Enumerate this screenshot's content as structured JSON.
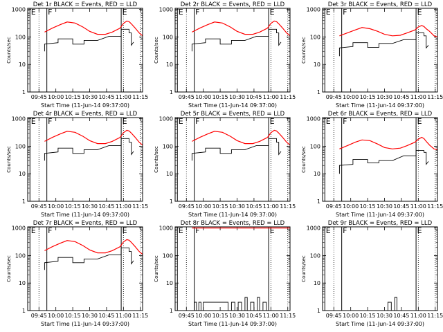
{
  "figure": {
    "xlabel": "Start Time (11-Jun-14 09:37:00)",
    "ylabel": "Counts/sec",
    "x_tick_labels": [
      "09:45",
      "10:00",
      "10:15",
      "10:30",
      "10:45",
      "11:00",
      "11:15"
    ],
    "y_tick_labels": [
      "1",
      "10",
      "100",
      "1000"
    ],
    "colors": {
      "events": "#000000",
      "lld": "#ff0000",
      "background": "#ffffff"
    }
  },
  "chart_data": [
    {
      "type": "line",
      "title": "Det 1r BLACK = Events, RED = LLD",
      "xlabel": "Start Time (11-Jun-14 09:37:00)",
      "ylabel": "Counts/sec",
      "x_unit": "minutes after 09:37",
      "xlim": [
        -2,
        100
      ],
      "ylim": [
        1,
        1100
      ],
      "yscale": "log",
      "markers": [
        {
          "label": "E",
          "x": 0
        },
        {
          "label": "F",
          "x": 15
        },
        {
          "label": "E",
          "x": 81
        }
      ],
      "series": [
        {
          "name": "LLD",
          "color": "red",
          "x": [
            13,
            20,
            27,
            33,
            40,
            47,
            53,
            60,
            67,
            73,
            80,
            83,
            86,
            88,
            90,
            93,
            97,
            100
          ],
          "y": [
            150,
            210,
            280,
            350,
            320,
            230,
            160,
            125,
            125,
            150,
            210,
            310,
            380,
            360,
            300,
            220,
            140,
            110
          ]
        },
        {
          "name": "Events",
          "color": "black",
          "x": [
            13,
            13,
            25,
            25,
            38,
            38,
            48,
            48,
            60,
            70,
            81,
            81,
            88,
            88,
            90,
            90,
            92
          ],
          "y": [
            30,
            55,
            62,
            85,
            85,
            55,
            55,
            75,
            75,
            105,
            105,
            190,
            190,
            140,
            140,
            50,
            65
          ]
        }
      ]
    },
    {
      "type": "line",
      "title": "Det 2r BLACK = Events, RED = LLD",
      "xlabel": "Start Time (11-Jun-14 09:37:00)",
      "ylabel": "Counts/sec",
      "x_unit": "minutes after 09:37",
      "xlim": [
        -2,
        100
      ],
      "ylim": [
        1,
        1100
      ],
      "yscale": "log",
      "markers": [
        {
          "label": "E",
          "x": 0
        },
        {
          "label": "F",
          "x": 15
        },
        {
          "label": "E",
          "x": 81
        }
      ],
      "series": [
        {
          "name": "LLD",
          "color": "red",
          "x": [
            13,
            20,
            27,
            33,
            40,
            47,
            53,
            60,
            67,
            73,
            80,
            83,
            86,
            88,
            90,
            93,
            97,
            100
          ],
          "y": [
            150,
            210,
            280,
            350,
            320,
            230,
            160,
            125,
            125,
            150,
            210,
            310,
            380,
            360,
            300,
            220,
            140,
            110
          ]
        },
        {
          "name": "Events",
          "color": "black",
          "x": [
            13,
            13,
            25,
            25,
            38,
            38,
            48,
            48,
            60,
            70,
            81,
            81,
            88,
            88,
            90,
            90,
            92
          ],
          "y": [
            30,
            55,
            62,
            85,
            85,
            55,
            55,
            75,
            75,
            105,
            105,
            190,
            190,
            140,
            140,
            50,
            65
          ]
        }
      ]
    },
    {
      "type": "line",
      "title": "Det 3r BLACK = Events, RED = LLD",
      "xlabel": "Start Time (11-Jun-14 09:37:00)",
      "ylabel": "Counts/sec",
      "x_unit": "minutes after 09:37",
      "xlim": [
        -2,
        100
      ],
      "ylim": [
        1,
        1100
      ],
      "yscale": "log",
      "markers": [
        {
          "label": "E",
          "x": 0
        },
        {
          "label": "F",
          "x": 15
        },
        {
          "label": "E",
          "x": 81
        }
      ],
      "series": [
        {
          "name": "LLD",
          "color": "red",
          "x": [
            13,
            20,
            27,
            33,
            40,
            47,
            53,
            60,
            67,
            73,
            80,
            83,
            86,
            88,
            90,
            93,
            97,
            100
          ],
          "y": [
            110,
            140,
            180,
            220,
            200,
            160,
            125,
            110,
            115,
            140,
            180,
            230,
            260,
            240,
            200,
            160,
            110,
            100
          ]
        },
        {
          "name": "Events",
          "color": "black",
          "x": [
            13,
            13,
            25,
            25,
            38,
            38,
            48,
            48,
            60,
            70,
            81,
            81,
            88,
            88,
            90,
            90,
            92
          ],
          "y": [
            20,
            40,
            45,
            62,
            62,
            42,
            42,
            58,
            58,
            80,
            80,
            140,
            140,
            110,
            110,
            40,
            50
          ]
        }
      ]
    },
    {
      "type": "line",
      "title": "Det 4r BLACK = Events, RED = LLD",
      "xlabel": "Start Time (11-Jun-14 09:37:00)",
      "ylabel": "Counts/sec",
      "x_unit": "minutes after 09:37",
      "xlim": [
        -2,
        100
      ],
      "ylim": [
        1,
        1100
      ],
      "yscale": "log",
      "markers": [
        {
          "label": "E",
          "x": 0
        },
        {
          "label": "F",
          "x": 15
        },
        {
          "label": "E",
          "x": 81
        }
      ],
      "series": [
        {
          "name": "LLD",
          "color": "red",
          "x": [
            13,
            20,
            27,
            33,
            40,
            47,
            53,
            60,
            67,
            73,
            80,
            83,
            86,
            88,
            90,
            93,
            97,
            100
          ],
          "y": [
            150,
            210,
            280,
            350,
            320,
            230,
            160,
            125,
            125,
            150,
            210,
            310,
            380,
            360,
            300,
            220,
            140,
            110
          ]
        },
        {
          "name": "Events",
          "color": "black",
          "x": [
            13,
            13,
            25,
            25,
            38,
            38,
            48,
            48,
            60,
            70,
            81,
            81,
            88,
            88,
            90,
            90,
            92
          ],
          "y": [
            30,
            55,
            62,
            85,
            85,
            55,
            55,
            75,
            75,
            105,
            105,
            190,
            190,
            140,
            140,
            50,
            65
          ]
        }
      ]
    },
    {
      "type": "line",
      "title": "Det 5r BLACK = Events, RED = LLD",
      "xlabel": "Start Time (11-Jun-14 09:37:00)",
      "ylabel": "Counts/sec",
      "x_unit": "minutes after 09:37",
      "xlim": [
        -2,
        100
      ],
      "ylim": [
        1,
        1100
      ],
      "yscale": "log",
      "markers": [
        {
          "label": "E",
          "x": 0
        },
        {
          "label": "F",
          "x": 15
        },
        {
          "label": "E",
          "x": 81
        }
      ],
      "series": [
        {
          "name": "LLD",
          "color": "red",
          "x": [
            13,
            20,
            27,
            33,
            40,
            47,
            53,
            60,
            67,
            73,
            80,
            83,
            86,
            88,
            90,
            93,
            97,
            100
          ],
          "y": [
            150,
            210,
            280,
            350,
            320,
            230,
            160,
            125,
            125,
            150,
            210,
            310,
            380,
            360,
            300,
            220,
            140,
            110
          ]
        },
        {
          "name": "Events",
          "color": "black",
          "x": [
            13,
            13,
            25,
            25,
            38,
            38,
            48,
            48,
            60,
            70,
            81,
            81,
            88,
            88,
            90,
            90,
            92
          ],
          "y": [
            30,
            55,
            62,
            85,
            85,
            55,
            55,
            75,
            75,
            105,
            105,
            190,
            190,
            140,
            140,
            50,
            65
          ]
        }
      ]
    },
    {
      "type": "line",
      "title": "Det 6r BLACK = Events, RED = LLD",
      "xlabel": "Start Time (11-Jun-14 09:37:00)",
      "ylabel": "Counts/sec",
      "x_unit": "minutes after 09:37",
      "xlim": [
        -2,
        100
      ],
      "ylim": [
        1,
        1100
      ],
      "yscale": "log",
      "markers": [
        {
          "label": "E",
          "x": 0
        },
        {
          "label": "F",
          "x": 15
        },
        {
          "label": "E",
          "x": 81
        }
      ],
      "series": [
        {
          "name": "LLD",
          "color": "red",
          "x": [
            13,
            20,
            27,
            33,
            40,
            47,
            53,
            60,
            67,
            73,
            80,
            83,
            86,
            88,
            90,
            93,
            97,
            100
          ],
          "y": [
            80,
            105,
            140,
            170,
            160,
            120,
            90,
            80,
            85,
            105,
            140,
            180,
            210,
            190,
            150,
            110,
            80,
            75
          ]
        },
        {
          "name": "Events",
          "color": "black",
          "x": [
            13,
            13,
            25,
            25,
            38,
            38,
            48,
            48,
            60,
            70,
            81,
            81,
            88,
            88,
            90,
            90,
            92
          ],
          "y": [
            10,
            20,
            22,
            33,
            33,
            25,
            25,
            30,
            30,
            45,
            45,
            70,
            70,
            60,
            60,
            22,
            28
          ]
        }
      ]
    },
    {
      "type": "line",
      "title": "Det 7r BLACK = Events, RED = LLD",
      "xlabel": "Start Time (11-Jun-14 09:37:00)",
      "ylabel": "Counts/sec",
      "x_unit": "minutes after 09:37",
      "xlim": [
        -2,
        100
      ],
      "ylim": [
        1,
        1100
      ],
      "yscale": "log",
      "markers": [
        {
          "label": "E",
          "x": 0
        },
        {
          "label": "F",
          "x": 15
        },
        {
          "label": "E",
          "x": 81
        }
      ],
      "series": [
        {
          "name": "LLD",
          "color": "red",
          "x": [
            13,
            20,
            27,
            33,
            40,
            47,
            53,
            60,
            67,
            73,
            80,
            83,
            86,
            88,
            90,
            93,
            97,
            100
          ],
          "y": [
            150,
            210,
            280,
            350,
            320,
            230,
            160,
            125,
            125,
            150,
            210,
            310,
            380,
            360,
            300,
            220,
            140,
            110
          ]
        },
        {
          "name": "Events",
          "color": "black",
          "x": [
            13,
            13,
            25,
            25,
            38,
            38,
            48,
            48,
            60,
            70,
            81,
            81,
            88,
            88,
            90,
            90,
            92
          ],
          "y": [
            30,
            55,
            62,
            85,
            85,
            55,
            55,
            75,
            75,
            105,
            105,
            190,
            190,
            140,
            140,
            50,
            65
          ]
        }
      ]
    },
    {
      "type": "line",
      "title": "Det 8r BLACK = Events, RED = LLD",
      "xlabel": "Start Time (11-Jun-14 09:37:00)",
      "ylabel": "Counts/sec",
      "x_unit": "minutes after 09:37",
      "xlim": [
        -2,
        100
      ],
      "ylim": [
        1,
        1100
      ],
      "yscale": "log",
      "markers": [
        {
          "label": "E",
          "x": 0
        },
        {
          "label": "F",
          "x": 15
        },
        {
          "label": "E",
          "x": 81
        }
      ],
      "series": [
        {
          "name": "LLD",
          "color": "red",
          "x": [
            13,
            20,
            27,
            33,
            40,
            47,
            53,
            60,
            67,
            73,
            80,
            83,
            86,
            88,
            90,
            93,
            97,
            100
          ],
          "y": [
            1000,
            1000,
            1000,
            1000,
            1000,
            1000,
            1000,
            1000,
            1000,
            1000,
            1000,
            1000,
            1000,
            1000,
            1000,
            1000,
            1000,
            1000
          ]
        },
        {
          "name": "Events",
          "color": "black",
          "x": [
            15,
            15,
            17,
            17,
            19,
            19,
            21,
            21,
            23,
            23,
            45,
            45,
            48,
            48,
            51,
            51,
            54,
            54,
            57,
            57,
            60,
            60,
            62,
            62,
            65,
            65,
            68,
            68,
            71,
            71,
            73,
            73,
            76,
            76,
            79,
            79
          ],
          "y": [
            1,
            2,
            2,
            1,
            1,
            2,
            2,
            1,
            1,
            2,
            2,
            1,
            1,
            2,
            2,
            1,
            1,
            2,
            2,
            1,
            1,
            3,
            3,
            1,
            1,
            2,
            2,
            1,
            1,
            3,
            3,
            1,
            1,
            2,
            2,
            1
          ]
        }
      ]
    },
    {
      "type": "line",
      "title": "Det 9r BLACK = Events, RED = LLD",
      "xlabel": "Start Time (11-Jun-14 09:37:00)",
      "ylabel": "Counts/sec",
      "x_unit": "minutes after 09:37",
      "xlim": [
        -2,
        100
      ],
      "ylim": [
        1,
        1100
      ],
      "yscale": "log",
      "markers": [
        {
          "label": "E",
          "x": 0
        },
        {
          "label": "F",
          "x": 15
        },
        {
          "label": "E",
          "x": 81
        }
      ],
      "series": [
        {
          "name": "Events",
          "color": "black",
          "x": [
            56,
            56,
            59,
            59,
            62,
            62,
            64,
            64
          ],
          "y": [
            1,
            2,
            2,
            1,
            1,
            3,
            3,
            1
          ]
        }
      ]
    }
  ]
}
